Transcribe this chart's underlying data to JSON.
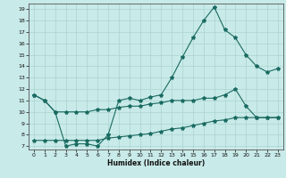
{
  "xlabel": "Humidex (Indice chaleur)",
  "bg_color": "#c8eae8",
  "line_color": "#1a6b62",
  "grid_color": "#aad4d0",
  "xlim": [
    -0.5,
    23.5
  ],
  "ylim": [
    6.7,
    19.5
  ],
  "yticks": [
    7,
    8,
    9,
    10,
    11,
    12,
    13,
    14,
    15,
    16,
    17,
    18,
    19
  ],
  "xticks": [
    0,
    1,
    2,
    3,
    4,
    5,
    6,
    7,
    8,
    9,
    10,
    11,
    12,
    13,
    14,
    15,
    16,
    17,
    18,
    19,
    20,
    21,
    22,
    23
  ],
  "line1_x": [
    0,
    1,
    2,
    3,
    4,
    5,
    6,
    7,
    8,
    9,
    10,
    11,
    12,
    13,
    14,
    15,
    16,
    17,
    18,
    19,
    20,
    21,
    22,
    23
  ],
  "line1_y": [
    11.5,
    11.0,
    10.0,
    7.0,
    7.2,
    7.2,
    7.0,
    8.0,
    11.0,
    11.2,
    11.0,
    11.3,
    11.5,
    13.0,
    14.8,
    16.5,
    18.0,
    19.2,
    17.2,
    16.5,
    15.0,
    14.0,
    13.5,
    13.8
  ],
  "line2_x": [
    0,
    1,
    2,
    3,
    4,
    5,
    6,
    7,
    8,
    9,
    10,
    11,
    12,
    13,
    14,
    15,
    16,
    17,
    18,
    19,
    20,
    21,
    22,
    23
  ],
  "line2_y": [
    11.5,
    11.0,
    10.0,
    10.0,
    10.0,
    10.0,
    10.2,
    10.2,
    10.4,
    10.5,
    10.5,
    10.7,
    10.8,
    11.0,
    11.0,
    11.0,
    11.2,
    11.2,
    11.5,
    12.0,
    10.5,
    9.5,
    9.5,
    9.5
  ],
  "line3_x": [
    0,
    1,
    2,
    3,
    4,
    5,
    6,
    7,
    8,
    9,
    10,
    11,
    12,
    13,
    14,
    15,
    16,
    17,
    18,
    19,
    20,
    21,
    22,
    23
  ],
  "line3_y": [
    7.5,
    7.5,
    7.5,
    7.5,
    7.5,
    7.5,
    7.5,
    7.7,
    7.8,
    7.9,
    8.0,
    8.1,
    8.3,
    8.5,
    8.6,
    8.8,
    9.0,
    9.2,
    9.3,
    9.5,
    9.5,
    9.5,
    9.5,
    9.5
  ]
}
